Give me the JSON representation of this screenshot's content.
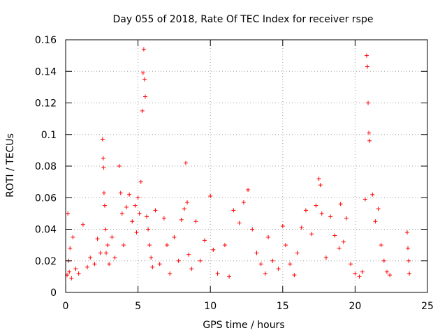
{
  "chart_data": {
    "type": "scatter",
    "title": "Day 055 of 2018, Rate Of TEC Index for receiver rspe",
    "xlabel": "GPS time / hours",
    "ylabel": "ROTI / TECUs",
    "xlim": [
      0,
      25
    ],
    "ylim": [
      0,
      0.16
    ],
    "x_ticks": [
      0,
      5,
      10,
      15,
      20,
      25
    ],
    "x_tick_labels": [
      "0",
      "5",
      "10",
      "15",
      "20",
      "25"
    ],
    "y_ticks": [
      0,
      0.02,
      0.04,
      0.06,
      0.08,
      0.1,
      0.12,
      0.14,
      0.16
    ],
    "y_tick_labels": [
      "0",
      "0.02",
      "0.04",
      "0.06",
      "0.08",
      "0.1",
      "0.12",
      "0.14",
      "0.16"
    ],
    "grid": true,
    "marker": "+",
    "series_color": "#ff0000",
    "series": [
      {
        "name": "ROTI",
        "x": [
          0.1,
          0.15,
          0.2,
          0.25,
          0.3,
          0.4,
          0.5,
          0.7,
          0.9,
          1.2,
          1.5,
          1.7,
          2.0,
          2.2,
          2.4,
          2.55,
          2.6,
          2.62,
          2.65,
          2.7,
          2.75,
          2.8,
          2.9,
          3.0,
          3.2,
          3.4,
          3.7,
          3.8,
          3.9,
          4.0,
          4.2,
          4.4,
          4.6,
          4.8,
          4.9,
          5.0,
          5.1,
          5.2,
          5.3,
          5.35,
          5.4,
          5.45,
          5.5,
          5.6,
          5.7,
          5.8,
          5.9,
          6.0,
          6.2,
          6.5,
          6.8,
          7.0,
          7.2,
          7.5,
          7.8,
          8.0,
          8.2,
          8.3,
          8.4,
          8.5,
          8.7,
          9.0,
          9.3,
          9.6,
          10.0,
          10.2,
          10.5,
          11.0,
          11.3,
          11.6,
          12.0,
          12.3,
          12.6,
          12.9,
          13.2,
          13.5,
          13.8,
          14.0,
          14.3,
          14.7,
          15.0,
          15.2,
          15.5,
          15.8,
          16.0,
          16.3,
          16.6,
          17.0,
          17.3,
          17.5,
          17.6,
          17.7,
          18.0,
          18.3,
          18.6,
          18.9,
          19.0,
          19.2,
          19.4,
          19.7,
          20.0,
          20.3,
          20.5,
          20.7,
          20.8,
          20.85,
          20.9,
          20.95,
          21.0,
          21.2,
          21.4,
          21.6,
          21.8,
          22.0,
          22.2,
          22.4,
          23.6,
          23.65,
          23.7,
          23.75
        ],
        "y": [
          0.011,
          0.05,
          0.02,
          0.013,
          0.028,
          0.009,
          0.035,
          0.015,
          0.012,
          0.043,
          0.016,
          0.022,
          0.018,
          0.034,
          0.025,
          0.097,
          0.085,
          0.079,
          0.063,
          0.055,
          0.04,
          0.025,
          0.03,
          0.018,
          0.035,
          0.022,
          0.08,
          0.063,
          0.05,
          0.03,
          0.054,
          0.062,
          0.045,
          0.055,
          0.038,
          0.06,
          0.05,
          0.07,
          0.115,
          0.139,
          0.154,
          0.135,
          0.124,
          0.048,
          0.04,
          0.03,
          0.022,
          0.016,
          0.052,
          0.018,
          0.047,
          0.03,
          0.012,
          0.035,
          0.02,
          0.046,
          0.053,
          0.082,
          0.057,
          0.024,
          0.015,
          0.045,
          0.02,
          0.033,
          0.061,
          0.027,
          0.012,
          0.03,
          0.01,
          0.052,
          0.044,
          0.057,
          0.065,
          0.04,
          0.025,
          0.018,
          0.012,
          0.035,
          0.02,
          0.015,
          0.042,
          0.03,
          0.018,
          0.011,
          0.025,
          0.041,
          0.052,
          0.037,
          0.055,
          0.072,
          0.068,
          0.05,
          0.022,
          0.048,
          0.036,
          0.028,
          0.056,
          0.032,
          0.047,
          0.018,
          0.012,
          0.01,
          0.013,
          0.059,
          0.15,
          0.143,
          0.12,
          0.101,
          0.096,
          0.062,
          0.045,
          0.053,
          0.03,
          0.02,
          0.013,
          0.011,
          0.038,
          0.028,
          0.02,
          0.012
        ]
      }
    ]
  }
}
